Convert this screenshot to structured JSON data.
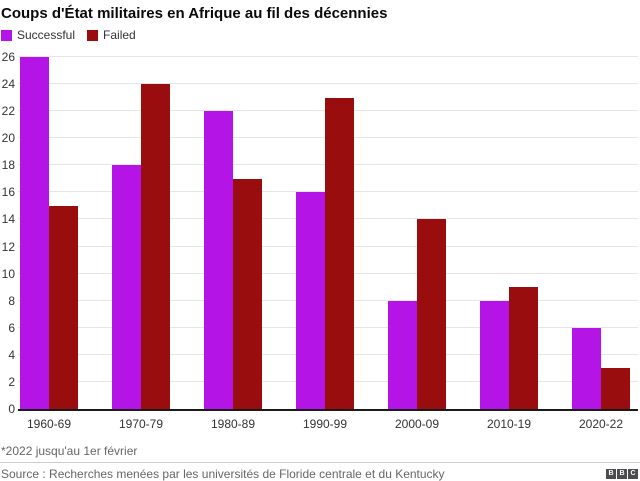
{
  "title": "Coups d'État militaires en Afrique au fil des décennies",
  "legend": [
    {
      "label": "Successful",
      "color": "#b414e6"
    },
    {
      "label": "Failed",
      "color": "#9a0d0f"
    }
  ],
  "chart_data": {
    "type": "bar",
    "title": "Coups d'État militaires en Afrique au fil des décennies",
    "categories": [
      "1960-69",
      "1970-79",
      "1980-89",
      "1990-99",
      "2000-09",
      "2010-19",
      "2020-22"
    ],
    "series": [
      {
        "name": "Successful",
        "color": "#b414e6",
        "values": [
          26,
          18,
          22,
          16,
          8,
          8,
          6
        ]
      },
      {
        "name": "Failed",
        "color": "#9a0d0f",
        "values": [
          15,
          24,
          17,
          23,
          14,
          9,
          3
        ]
      }
    ],
    "xlabel": "",
    "ylabel": "",
    "ylim": [
      0,
      26
    ],
    "ytick_step": 2,
    "grid": "horizontal",
    "legend_position": "top-left",
    "axis_line_color": "#1a1a1a",
    "gridline_color": "#e6e6e6"
  },
  "footnote": "*2022 jusqu'au 1er février",
  "source": "Source : Recherches menées par les universités de Floride centrale et du Kentucky",
  "logo": {
    "letters": [
      "B",
      "B",
      "C"
    ]
  }
}
